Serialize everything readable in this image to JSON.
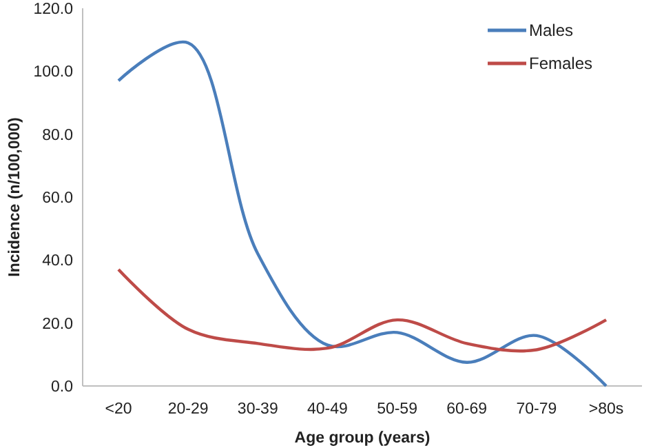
{
  "chart_data": {
    "type": "line",
    "xlabel": "Age group (years)",
    "ylabel": "Incidence (n/100,000)",
    "categories": [
      "<20",
      "20-29",
      "30-39",
      "40-49",
      "50-59",
      "60-69",
      "70-79",
      ">80s"
    ],
    "series": [
      {
        "name": "Males",
        "color": "#4a7ebb",
        "values": [
          97,
          109,
          42,
          13,
          17,
          7.5,
          16,
          0
        ]
      },
      {
        "name": "Females",
        "color": "#be4b48",
        "values": [
          37,
          18,
          13.5,
          12,
          21,
          13.5,
          11.5,
          21
        ]
      }
    ],
    "ylim": [
      0,
      120
    ],
    "yticks": [
      {
        "value": 0,
        "label": "0.0"
      },
      {
        "value": 20,
        "label": "20.0"
      },
      {
        "value": 40,
        "label": "40.0"
      },
      {
        "value": 60,
        "label": "60.0"
      },
      {
        "value": 80,
        "label": "80.0"
      },
      {
        "value": 100,
        "label": "100.0"
      },
      {
        "value": 120,
        "label": "120.0"
      }
    ],
    "grid": false,
    "legend": "top right",
    "marker": "none",
    "line_style": "solid"
  }
}
